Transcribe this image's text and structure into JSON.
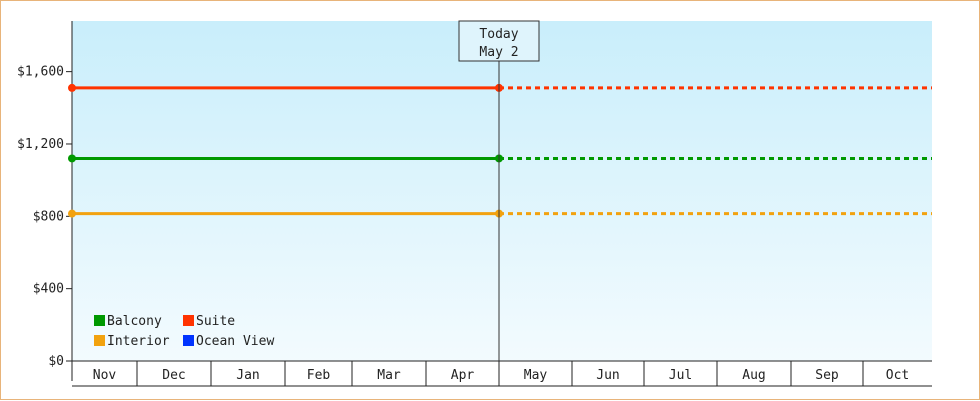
{
  "chart_data": {
    "type": "line",
    "title": "",
    "xlabel": "",
    "ylabel": "",
    "ylim": [
      0,
      1880
    ],
    "y_ticks": [
      {
        "value": 0,
        "label": "$0"
      },
      {
        "value": 400,
        "label": "$400"
      },
      {
        "value": 800,
        "label": "$800"
      },
      {
        "value": 1200,
        "label": "$1,200"
      },
      {
        "value": 1600,
        "label": "$1,600"
      }
    ],
    "months": [
      "Nov",
      "Dec",
      "Jan",
      "Feb",
      "Mar",
      "Apr",
      "May",
      "Jun",
      "Jul",
      "Aug",
      "Sep",
      "Oct"
    ],
    "today": {
      "line1": "Today",
      "line2": "May 2",
      "month_position": 6.0
    },
    "series": [
      {
        "name": "Suite",
        "color": "#ff3300",
        "value": 1510
      },
      {
        "name": "Balcony",
        "color": "#009900",
        "value": 1120
      },
      {
        "name": "Interior",
        "color": "#f2a20f",
        "value": 815
      }
    ],
    "legend": [
      {
        "name": "Balcony",
        "color": "#009900"
      },
      {
        "name": "Suite",
        "color": "#ff3300"
      },
      {
        "name": "Interior",
        "color": "#f2a20f"
      },
      {
        "name": "Ocean View",
        "color": "#0033ff"
      }
    ],
    "legend_position": "bottom-left",
    "grid": false
  }
}
